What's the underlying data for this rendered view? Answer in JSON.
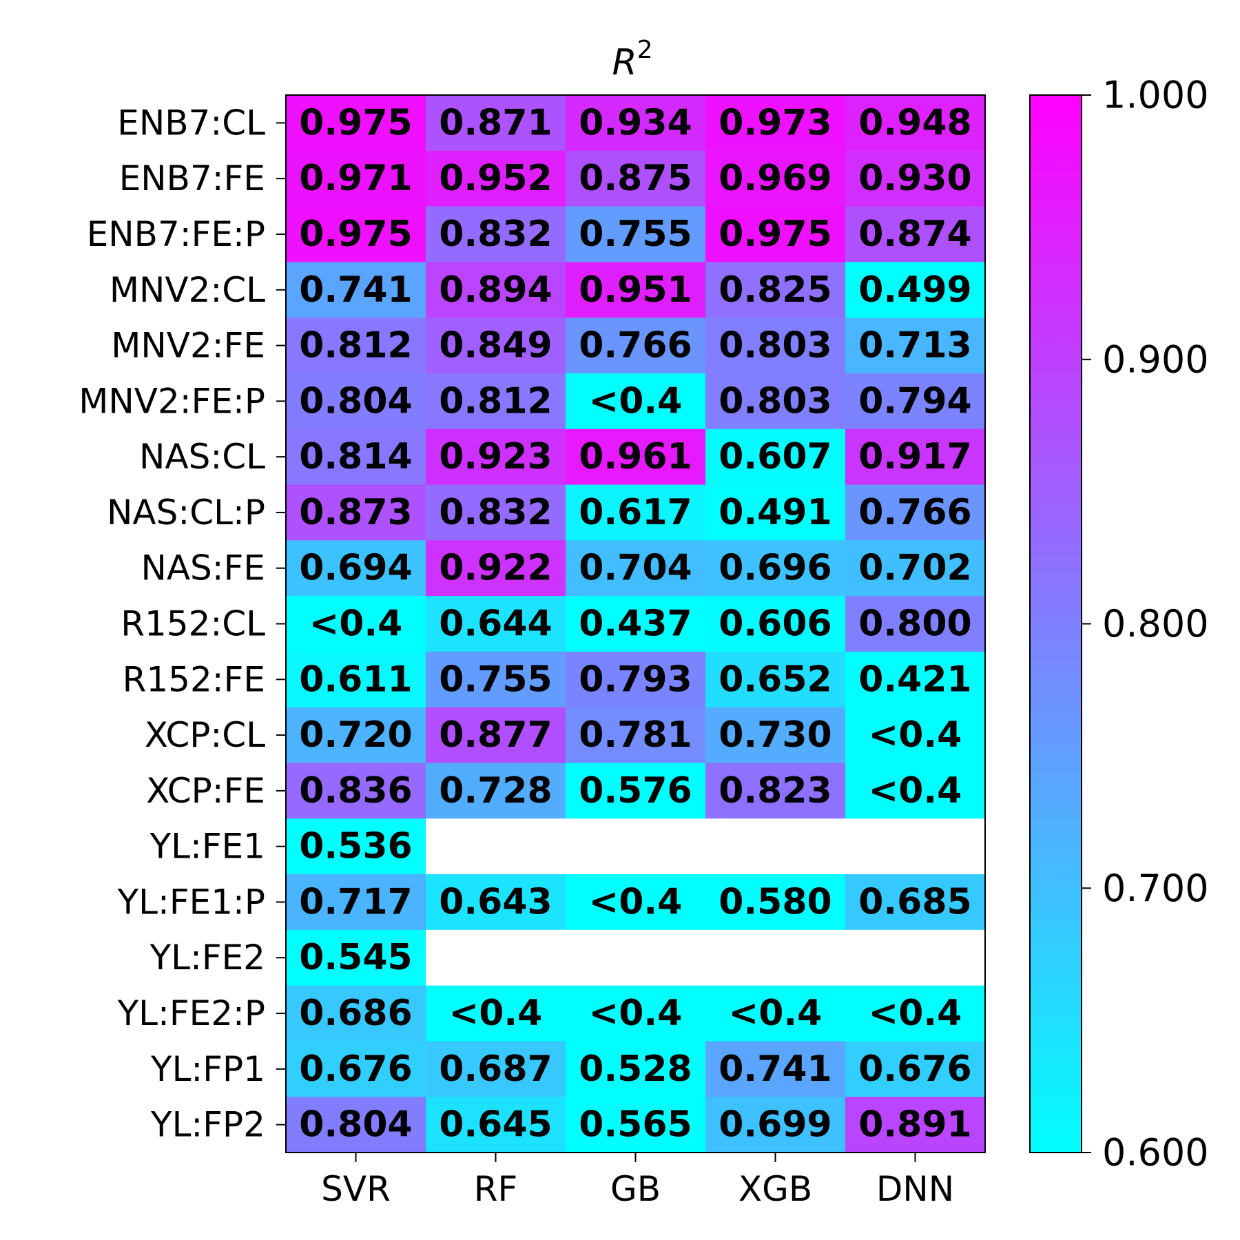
{
  "chart_data": {
    "type": "heatmap",
    "title": "R",
    "title_superscript": "2",
    "x_categories": [
      "SVR",
      "RF",
      "GB",
      "XGB",
      "DNN"
    ],
    "y_categories": [
      "ENB7:CL",
      "ENB7:FE",
      "ENB7:FE:P",
      "MNV2:CL",
      "MNV2:FE",
      "MNV2:FE:P",
      "NAS:CL",
      "NAS:CL:P",
      "NAS:FE",
      "R152:CL",
      "R152:FE",
      "XCP:CL",
      "XCP:FE",
      "YL:FE1",
      "YL:FE1:P",
      "YL:FE2",
      "YL:FE2:P",
      "YL:FP1",
      "YL:FP2"
    ],
    "values": [
      [
        0.975,
        0.871,
        0.934,
        0.973,
        0.948
      ],
      [
        0.971,
        0.952,
        0.875,
        0.969,
        0.93
      ],
      [
        0.975,
        0.832,
        0.755,
        0.975,
        0.874
      ],
      [
        0.741,
        0.894,
        0.951,
        0.825,
        0.499
      ],
      [
        0.812,
        0.849,
        0.766,
        0.803,
        0.713
      ],
      [
        0.804,
        0.812,
        null,
        0.803,
        0.794
      ],
      [
        0.814,
        0.923,
        0.961,
        0.607,
        0.917
      ],
      [
        0.873,
        0.832,
        0.617,
        0.491,
        0.766
      ],
      [
        0.694,
        0.922,
        0.704,
        0.696,
        0.702
      ],
      [
        null,
        0.644,
        0.437,
        0.606,
        0.8
      ],
      [
        0.611,
        0.755,
        0.793,
        0.652,
        0.421
      ],
      [
        0.72,
        0.877,
        0.781,
        0.73,
        null
      ],
      [
        0.836,
        0.728,
        0.576,
        0.823,
        null
      ],
      [
        0.536,
        null,
        null,
        null,
        null
      ],
      [
        0.717,
        0.643,
        null,
        0.58,
        0.685
      ],
      [
        0.545,
        null,
        null,
        null,
        null
      ],
      [
        0.686,
        null,
        null,
        null,
        null
      ],
      [
        0.676,
        0.687,
        0.528,
        0.741,
        0.676
      ],
      [
        0.804,
        0.645,
        0.565,
        0.699,
        0.891
      ]
    ],
    "labels": [
      [
        "0.975",
        "0.871",
        "0.934",
        "0.973",
        "0.948"
      ],
      [
        "0.971",
        "0.952",
        "0.875",
        "0.969",
        "0.930"
      ],
      [
        "0.975",
        "0.832",
        "0.755",
        "0.975",
        "0.874"
      ],
      [
        "0.741",
        "0.894",
        "0.951",
        "0.825",
        "0.499"
      ],
      [
        "0.812",
        "0.849",
        "0.766",
        "0.803",
        "0.713"
      ],
      [
        "0.804",
        "0.812",
        "<0.4",
        "0.803",
        "0.794"
      ],
      [
        "0.814",
        "0.923",
        "0.961",
        "0.607",
        "0.917"
      ],
      [
        "0.873",
        "0.832",
        "0.617",
        "0.491",
        "0.766"
      ],
      [
        "0.694",
        "0.922",
        "0.704",
        "0.696",
        "0.702"
      ],
      [
        "<0.4",
        "0.644",
        "0.437",
        "0.606",
        "0.800"
      ],
      [
        "0.611",
        "0.755",
        "0.793",
        "0.652",
        "0.421"
      ],
      [
        "0.720",
        "0.877",
        "0.781",
        "0.730",
        "<0.4"
      ],
      [
        "0.836",
        "0.728",
        "0.576",
        "0.823",
        "<0.4"
      ],
      [
        "0.536",
        "",
        "",
        "",
        ""
      ],
      [
        "0.717",
        "0.643",
        "<0.4",
        "0.580",
        "0.685"
      ],
      [
        "0.545",
        "",
        "",
        "",
        ""
      ],
      [
        "0.686",
        "<0.4",
        "<0.4",
        "<0.4",
        "<0.4"
      ],
      [
        "0.676",
        "0.687",
        "0.528",
        "0.741",
        "0.676"
      ],
      [
        "0.804",
        "0.645",
        "0.565",
        "0.699",
        "0.891"
      ]
    ],
    "below_threshold_color_value": 0.6,
    "colormap": "cool",
    "color_range": [
      0.6,
      1.0
    ],
    "colorbar_ticks": [
      "0.600",
      "0.700",
      "0.800",
      "0.900",
      "1.000"
    ],
    "colorbar_tick_values": [
      0.6,
      0.7,
      0.8,
      0.9,
      1.0
    ],
    "colors": {
      "low": "#00ffff",
      "high": "#ff00ff",
      "missing": "#ffffff"
    },
    "grid": false,
    "legend": "colorbar-right"
  }
}
